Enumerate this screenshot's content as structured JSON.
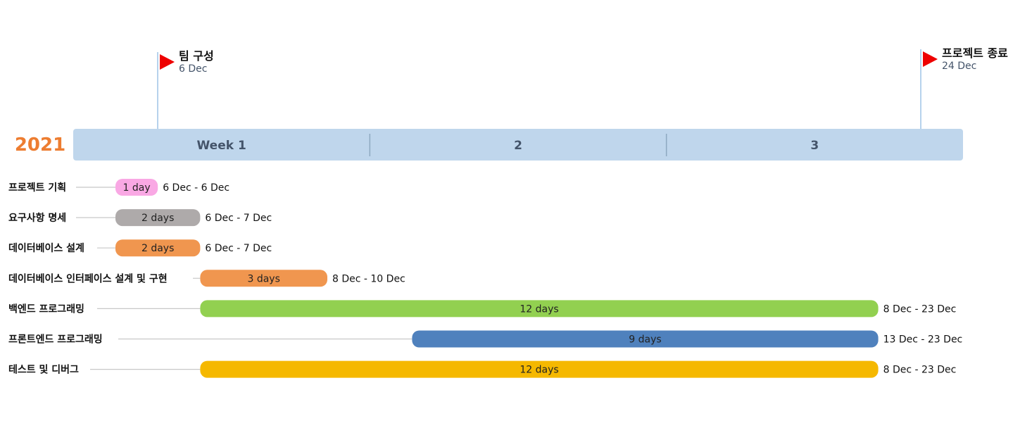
{
  "colors": {
    "scale_band": "#bfd6ec",
    "scale_divider": "#8ea9c1",
    "year": "#ed7d31",
    "milestone_flag": "#ee0000",
    "milestone_pole": "#9dc3e6",
    "leader_line": "#c8c8c8"
  },
  "chart_data": {
    "type": "gantt",
    "year": "2021",
    "weeks": [
      {
        "label": "Week 1",
        "start": "2021-12-05",
        "end": "2021-12-11"
      },
      {
        "label": "2",
        "start": "2021-12-12",
        "end": "2021-12-18"
      },
      {
        "label": "3",
        "start": "2021-12-19",
        "end": "2021-12-25"
      }
    ],
    "milestones": [
      {
        "title": "팀 구성",
        "date_label": "6 Dec",
        "date": "2021-12-06"
      },
      {
        "title": "프로젝트 종료",
        "date_label": "24 Dec",
        "date": "2021-12-24"
      }
    ],
    "tasks": [
      {
        "name": "프로젝트 기획",
        "start": "2021-12-06",
        "end": "2021-12-06",
        "duration_label": "1 day",
        "range_label": "6 Dec - 6 Dec",
        "color": "#f9a8e4"
      },
      {
        "name": "요구사항 명세",
        "start": "2021-12-06",
        "end": "2021-12-07",
        "duration_label": "2 days",
        "range_label": "6 Dec - 7 Dec",
        "color": "#aeaaaa"
      },
      {
        "name": "데이터베이스 설계",
        "start": "2021-12-06",
        "end": "2021-12-07",
        "duration_label": "2 days",
        "range_label": "6 Dec - 7 Dec",
        "color": "#f0964f"
      },
      {
        "name": "데이터베이스 인터페이스 설계 및 구현",
        "start": "2021-12-08",
        "end": "2021-12-10",
        "duration_label": "3 days",
        "range_label": "8 Dec - 10 Dec",
        "color": "#f0964f"
      },
      {
        "name": "백엔드 프로그래밍",
        "start": "2021-12-08",
        "end": "2021-12-23",
        "duration_label": "12 days",
        "range_label": "8 Dec - 23 Dec",
        "color": "#92d050"
      },
      {
        "name": "프론트엔드 프로그래밍",
        "start": "2021-12-13",
        "end": "2021-12-23",
        "duration_label": "9 days",
        "range_label": "13 Dec - 23 Dec",
        "color": "#4f81bd"
      },
      {
        "name": "테스트 및 디버그",
        "start": "2021-12-08",
        "end": "2021-12-23",
        "duration_label": "12 days",
        "range_label": "8 Dec - 23 Dec",
        "color": "#f5b800"
      }
    ]
  }
}
